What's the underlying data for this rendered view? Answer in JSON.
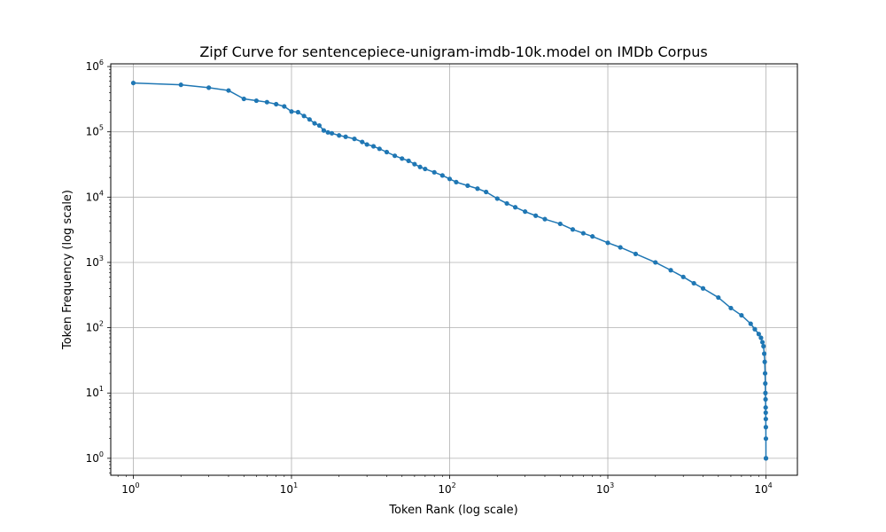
{
  "chart_data": {
    "type": "line",
    "title": "Zipf Curve for sentencepiece-unigram-imdb-10k.model on IMDb Corpus",
    "xlabel": "Token Rank (log scale)",
    "ylabel": "Token Frequency (log scale)",
    "xscale": "log",
    "yscale": "log",
    "xlim": [
      0.72,
      15800
    ],
    "ylim": [
      0.55,
      1100000
    ],
    "grid": true,
    "line_color": "#1f77b4",
    "marker": "circle",
    "x_ticks": [
      {
        "value": 1,
        "base": "10",
        "exp": "0"
      },
      {
        "value": 10,
        "base": "10",
        "exp": "1"
      },
      {
        "value": 100,
        "base": "10",
        "exp": "2"
      },
      {
        "value": 1000,
        "base": "10",
        "exp": "3"
      },
      {
        "value": 10000,
        "base": "10",
        "exp": "4"
      }
    ],
    "y_ticks": [
      {
        "value": 1,
        "base": "10",
        "exp": "0"
      },
      {
        "value": 10,
        "base": "10",
        "exp": "1"
      },
      {
        "value": 100,
        "base": "10",
        "exp": "2"
      },
      {
        "value": 1000,
        "base": "10",
        "exp": "3"
      },
      {
        "value": 10000,
        "base": "10",
        "exp": "4"
      },
      {
        "value": 100000,
        "base": "10",
        "exp": "5"
      },
      {
        "value": 1000000,
        "base": "10",
        "exp": "6"
      }
    ],
    "series": [
      {
        "x": [
          1,
          2,
          3,
          4,
          5,
          6,
          7,
          8,
          9,
          10,
          11,
          12,
          13,
          14,
          15,
          16,
          17,
          18,
          20,
          22,
          25,
          28,
          30,
          33,
          36,
          40,
          45,
          50,
          55,
          60,
          65,
          70,
          80,
          90,
          100,
          110,
          130,
          150,
          170,
          200,
          230,
          260,
          300,
          350,
          400,
          500,
          600,
          700,
          800,
          1000,
          1200,
          1500,
          2000,
          2500,
          3000,
          3500,
          4000,
          5000,
          6000,
          7000,
          8000,
          8500,
          9000,
          9300,
          9500,
          9650,
          9750,
          9820,
          9870,
          9900,
          9920,
          9940,
          9955,
          9965,
          9975,
          9983,
          9990,
          9995,
          10000
        ],
        "y": [
          560000,
          525000,
          475000,
          430000,
          320000,
          300000,
          285000,
          265000,
          245000,
          205000,
          200000,
          175000,
          155000,
          135000,
          125000,
          105000,
          98000,
          95000,
          88000,
          84000,
          78000,
          70000,
          64000,
          60000,
          55000,
          49000,
          43000,
          39000,
          36000,
          32000,
          29000,
          27000,
          24000,
          21500,
          19000,
          17000,
          15000,
          13500,
          12000,
          9500,
          8000,
          7000,
          6000,
          5200,
          4600,
          3900,
          3200,
          2800,
          2500,
          2000,
          1700,
          1350,
          1000,
          760,
          600,
          480,
          400,
          290,
          200,
          155,
          115,
          95,
          80,
          70,
          60,
          52,
          40,
          30,
          20,
          14,
          10,
          8,
          6,
          5,
          4,
          3,
          2,
          1,
          1
        ]
      }
    ]
  }
}
